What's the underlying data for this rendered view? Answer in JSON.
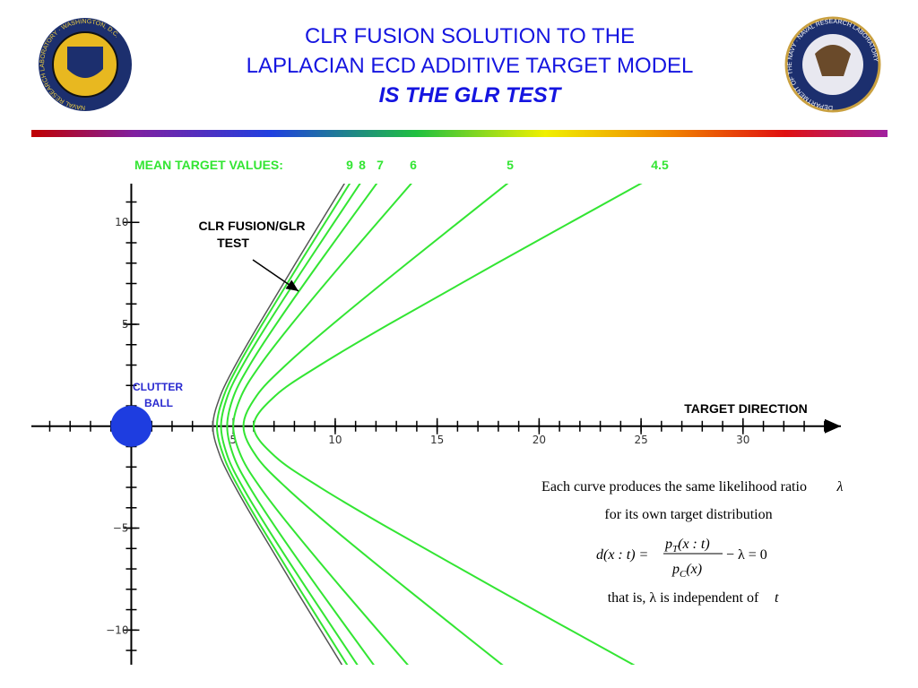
{
  "header": {
    "title_lines": [
      "CLR FUSION SOLUTION TO THE",
      "LAPLACIAN ECD ADDITIVE TARGET MODEL",
      "IS THE GLR TEST"
    ],
    "left_logo_text": "NAVAL RESEARCH LABORATORY · WASHINGTON, D.C.",
    "right_logo_text": "DEPARTMENT OF THE NAVY · NAVAL RESEARCH LABORATORY"
  },
  "chart_data": {
    "type": "line",
    "legend_title": "MEAN TARGET VALUES:",
    "xlim": [
      -4.9,
      34.8
    ],
    "ylim": [
      -11.7,
      11.9
    ],
    "xticks": [
      5,
      10,
      15,
      20,
      25,
      30
    ],
    "yticks": [
      {
        "value": -10,
        "label": "−10"
      },
      {
        "value": -5,
        "label": "−5"
      },
      5,
      10
    ],
    "x_axis_label": "TARGET DIRECTION",
    "annotations": {
      "glr_lines": [
        "CLR FUSION/GLR",
        "TEST"
      ],
      "clutter_lines": [
        "CLUTTER",
        "BALL"
      ]
    },
    "series": [
      {
        "name": "9",
        "color": "#33e533",
        "x": [
          10.77,
          8.26,
          6.42,
          5.26,
          4.54,
          4.2,
          4.54,
          5.26,
          6.42,
          8.26,
          10.77
        ],
        "values": [
          -12,
          -8,
          -5,
          -3,
          -1.5,
          0,
          1.5,
          3,
          5,
          8,
          12
        ]
      },
      {
        "name": "8",
        "color": "#33e533",
        "x": [
          11.28,
          8.62,
          6.68,
          5.47,
          4.73,
          4.4,
          4.73,
          5.47,
          6.68,
          8.62,
          11.28
        ],
        "values": [
          -12,
          -8,
          -5,
          -3,
          -1.5,
          0,
          1.5,
          3,
          5,
          8,
          12
        ]
      },
      {
        "name": "7",
        "color": "#33e533",
        "x": [
          12.1,
          9.2,
          7.1,
          5.81,
          5.03,
          4.7,
          5.03,
          5.81,
          7.1,
          9.2,
          12.1
        ],
        "values": [
          -12,
          -8,
          -5,
          -3,
          -1.5,
          0,
          1.5,
          3,
          5,
          8,
          12
        ]
      },
      {
        "name": "6",
        "color": "#33e533",
        "x": [
          13.81,
          10.36,
          7.86,
          6.32,
          5.4,
          5.0,
          5.4,
          6.32,
          7.86,
          10.36,
          13.81
        ],
        "values": [
          -12,
          -8,
          -5,
          -3,
          -1.5,
          0,
          1.5,
          3,
          5,
          8,
          12
        ]
      },
      {
        "name": "5",
        "color": "#33e533",
        "x": [
          18.56,
          13.54,
          9.87,
          7.58,
          6.15,
          5.5,
          6.15,
          7.58,
          9.87,
          13.54,
          18.56
        ],
        "values": [
          -12,
          -8,
          -5,
          -3,
          -1.5,
          0,
          1.5,
          3,
          5,
          8,
          12
        ]
      },
      {
        "name": "4.5",
        "color": "#33e533",
        "x": [
          25.16,
          17.94,
          12.63,
          9.26,
          7.07,
          6.0,
          7.07,
          9.26,
          12.63,
          17.94,
          25.16
        ],
        "values": [
          -12,
          -8,
          -5,
          -3,
          -1.5,
          0,
          1.5,
          3,
          5,
          8,
          12
        ]
      },
      {
        "color": "#555555",
        "x": [
          10.51,
          8.06,
          6.26,
          5.11,
          4.37,
          4.0,
          4.37,
          5.11,
          6.26,
          8.06,
          10.51
        ],
        "values": [
          -12,
          -8,
          -5,
          -3,
          -1.5,
          0,
          1.5,
          3,
          5,
          8,
          12
        ]
      }
    ]
  },
  "note": {
    "line1": "Each curve produces the same likelihood ratio",
    "lambda": "λ",
    "line2": "for its own target distribution",
    "formula": {
      "lhs": "d(x : t) =",
      "num_base": "p",
      "num_sub": "T",
      "num_arg": "(x : t)",
      "den_base": "p",
      "den_sub": "C",
      "den_arg": "(x)",
      "rhs": "− λ = 0"
    },
    "line3": "that is, λ is independent of",
    "line3_var": "t"
  }
}
